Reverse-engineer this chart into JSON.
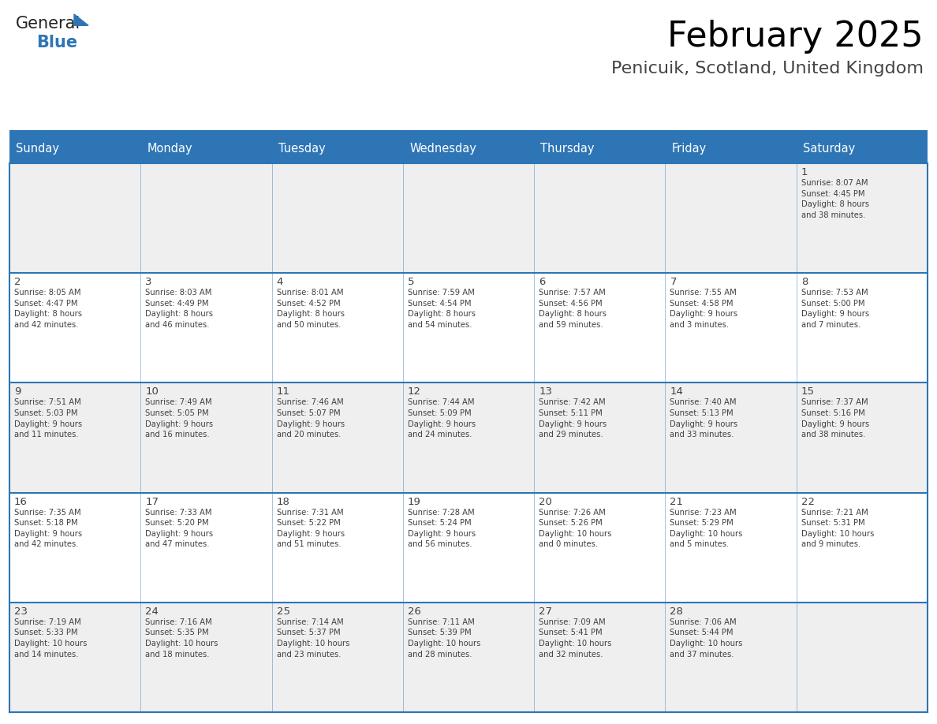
{
  "title": "February 2025",
  "subtitle": "Penicuik, Scotland, United Kingdom",
  "header_bg": "#2E75B6",
  "header_text_color": "#FFFFFF",
  "cell_bg_white": "#FFFFFF",
  "cell_bg_gray": "#EFEFEF",
  "grid_line_color": "#2E75B6",
  "text_color": "#404040",
  "day_headers": [
    "Sunday",
    "Monday",
    "Tuesday",
    "Wednesday",
    "Thursday",
    "Friday",
    "Saturday"
  ],
  "weeks": [
    [
      {
        "day": null,
        "info": null
      },
      {
        "day": null,
        "info": null
      },
      {
        "day": null,
        "info": null
      },
      {
        "day": null,
        "info": null
      },
      {
        "day": null,
        "info": null
      },
      {
        "day": null,
        "info": null
      },
      {
        "day": 1,
        "info": "Sunrise: 8:07 AM\nSunset: 4:45 PM\nDaylight: 8 hours\nand 38 minutes."
      }
    ],
    [
      {
        "day": 2,
        "info": "Sunrise: 8:05 AM\nSunset: 4:47 PM\nDaylight: 8 hours\nand 42 minutes."
      },
      {
        "day": 3,
        "info": "Sunrise: 8:03 AM\nSunset: 4:49 PM\nDaylight: 8 hours\nand 46 minutes."
      },
      {
        "day": 4,
        "info": "Sunrise: 8:01 AM\nSunset: 4:52 PM\nDaylight: 8 hours\nand 50 minutes."
      },
      {
        "day": 5,
        "info": "Sunrise: 7:59 AM\nSunset: 4:54 PM\nDaylight: 8 hours\nand 54 minutes."
      },
      {
        "day": 6,
        "info": "Sunrise: 7:57 AM\nSunset: 4:56 PM\nDaylight: 8 hours\nand 59 minutes."
      },
      {
        "day": 7,
        "info": "Sunrise: 7:55 AM\nSunset: 4:58 PM\nDaylight: 9 hours\nand 3 minutes."
      },
      {
        "day": 8,
        "info": "Sunrise: 7:53 AM\nSunset: 5:00 PM\nDaylight: 9 hours\nand 7 minutes."
      }
    ],
    [
      {
        "day": 9,
        "info": "Sunrise: 7:51 AM\nSunset: 5:03 PM\nDaylight: 9 hours\nand 11 minutes."
      },
      {
        "day": 10,
        "info": "Sunrise: 7:49 AM\nSunset: 5:05 PM\nDaylight: 9 hours\nand 16 minutes."
      },
      {
        "day": 11,
        "info": "Sunrise: 7:46 AM\nSunset: 5:07 PM\nDaylight: 9 hours\nand 20 minutes."
      },
      {
        "day": 12,
        "info": "Sunrise: 7:44 AM\nSunset: 5:09 PM\nDaylight: 9 hours\nand 24 minutes."
      },
      {
        "day": 13,
        "info": "Sunrise: 7:42 AM\nSunset: 5:11 PM\nDaylight: 9 hours\nand 29 minutes."
      },
      {
        "day": 14,
        "info": "Sunrise: 7:40 AM\nSunset: 5:13 PM\nDaylight: 9 hours\nand 33 minutes."
      },
      {
        "day": 15,
        "info": "Sunrise: 7:37 AM\nSunset: 5:16 PM\nDaylight: 9 hours\nand 38 minutes."
      }
    ],
    [
      {
        "day": 16,
        "info": "Sunrise: 7:35 AM\nSunset: 5:18 PM\nDaylight: 9 hours\nand 42 minutes."
      },
      {
        "day": 17,
        "info": "Sunrise: 7:33 AM\nSunset: 5:20 PM\nDaylight: 9 hours\nand 47 minutes."
      },
      {
        "day": 18,
        "info": "Sunrise: 7:31 AM\nSunset: 5:22 PM\nDaylight: 9 hours\nand 51 minutes."
      },
      {
        "day": 19,
        "info": "Sunrise: 7:28 AM\nSunset: 5:24 PM\nDaylight: 9 hours\nand 56 minutes."
      },
      {
        "day": 20,
        "info": "Sunrise: 7:26 AM\nSunset: 5:26 PM\nDaylight: 10 hours\nand 0 minutes."
      },
      {
        "day": 21,
        "info": "Sunrise: 7:23 AM\nSunset: 5:29 PM\nDaylight: 10 hours\nand 5 minutes."
      },
      {
        "day": 22,
        "info": "Sunrise: 7:21 AM\nSunset: 5:31 PM\nDaylight: 10 hours\nand 9 minutes."
      }
    ],
    [
      {
        "day": 23,
        "info": "Sunrise: 7:19 AM\nSunset: 5:33 PM\nDaylight: 10 hours\nand 14 minutes."
      },
      {
        "day": 24,
        "info": "Sunrise: 7:16 AM\nSunset: 5:35 PM\nDaylight: 10 hours\nand 18 minutes."
      },
      {
        "day": 25,
        "info": "Sunrise: 7:14 AM\nSunset: 5:37 PM\nDaylight: 10 hours\nand 23 minutes."
      },
      {
        "day": 26,
        "info": "Sunrise: 7:11 AM\nSunset: 5:39 PM\nDaylight: 10 hours\nand 28 minutes."
      },
      {
        "day": 27,
        "info": "Sunrise: 7:09 AM\nSunset: 5:41 PM\nDaylight: 10 hours\nand 32 minutes."
      },
      {
        "day": 28,
        "info": "Sunrise: 7:06 AM\nSunset: 5:44 PM\nDaylight: 10 hours\nand 37 minutes."
      },
      {
        "day": null,
        "info": null
      }
    ]
  ],
  "logo_general_color": "#222222",
  "logo_blue_color": "#2E75B6",
  "title_fontsize": 32,
  "subtitle_fontsize": 16,
  "header_fontsize": 10.5,
  "day_num_fontsize": 9.5,
  "info_fontsize": 7.2
}
